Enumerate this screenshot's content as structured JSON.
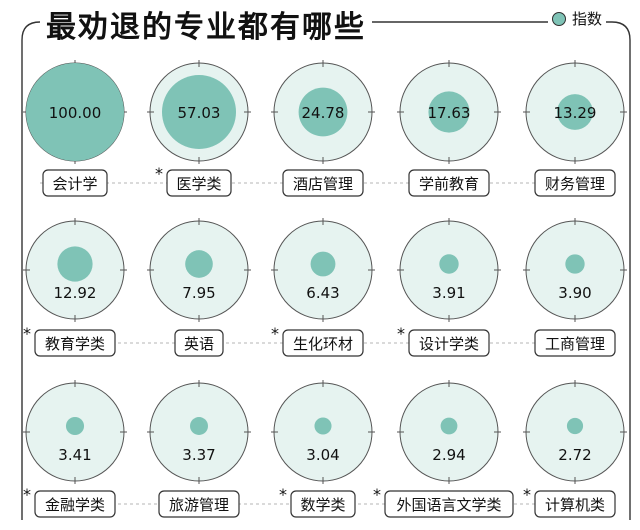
{
  "header": {
    "title": "最劝退的专业都有哪些",
    "legend_label": "指数"
  },
  "colors": {
    "bubble_fill": "#7fc3b6",
    "bubble_ring": "#e6f3f0",
    "frame_line": "#333333",
    "dashed_line": "#b5b5b5"
  },
  "chart_data": {
    "type": "bubble",
    "title": "最劝退的专业都有哪些",
    "legend": "指数",
    "legend_position": "top-right",
    "max_value": 100,
    "items": [
      {
        "category": "会计学",
        "value": 100.0,
        "label": "100.00",
        "starred": false
      },
      {
        "category": "医学类",
        "value": 57.03,
        "label": "57.03",
        "starred": true
      },
      {
        "category": "酒店管理",
        "value": 24.78,
        "label": "24.78",
        "starred": false
      },
      {
        "category": "学前教育",
        "value": 17.63,
        "label": "17.63",
        "starred": false
      },
      {
        "category": "财务管理",
        "value": 13.29,
        "label": "13.29",
        "starred": false
      },
      {
        "category": "教育学类",
        "value": 12.92,
        "label": "12.92",
        "starred": true
      },
      {
        "category": "英语",
        "value": 7.95,
        "label": "7.95",
        "starred": false
      },
      {
        "category": "生化环材",
        "value": 6.43,
        "label": "6.43",
        "starred": true
      },
      {
        "category": "设计学类",
        "value": 3.91,
        "label": "3.91",
        "starred": true
      },
      {
        "category": "工商管理",
        "value": 3.9,
        "label": "3.90",
        "starred": false
      },
      {
        "category": "金融学类",
        "value": 3.41,
        "label": "3.41",
        "starred": true
      },
      {
        "category": "旅游管理",
        "value": 3.37,
        "label": "3.37",
        "starred": false
      },
      {
        "category": "数学类",
        "value": 3.04,
        "label": "3.04",
        "starred": true
      },
      {
        "category": "外国语言文学类",
        "value": 2.94,
        "label": "2.94",
        "starred": true
      },
      {
        "category": "计算机类",
        "value": 2.72,
        "label": "2.72",
        "starred": true
      }
    ]
  }
}
